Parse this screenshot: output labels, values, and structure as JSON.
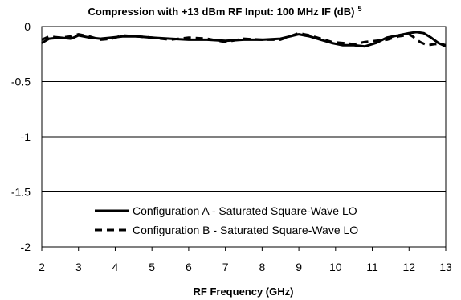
{
  "chart_data": {
    "type": "line",
    "title": "Compression with +13 dBm RF Input: 100 MHz IF (dB)",
    "title_superscript": "5",
    "xlabel": "RF Frequency (GHz)",
    "ylabel": "",
    "xlim": [
      2,
      13
    ],
    "ylim": [
      -2,
      0
    ],
    "x_ticks": [
      "2",
      "3",
      "4",
      "5",
      "6",
      "7",
      "8",
      "9",
      "10",
      "11",
      "12",
      "13"
    ],
    "y_ticks": [
      "0",
      "-0.5",
      "-1",
      "-1.5",
      "-2"
    ],
    "grid": "horizontal",
    "legend_position": "bottom-center",
    "series": [
      {
        "name": "Configuration A - Saturated Square-Wave LO",
        "style": "solid",
        "color": "#000000",
        "x": [
          2.0,
          2.2,
          2.5,
          2.8,
          3.0,
          3.3,
          3.6,
          3.9,
          4.2,
          4.6,
          5.0,
          5.5,
          6.0,
          6.5,
          7.0,
          7.5,
          8.0,
          8.5,
          9.0,
          9.3,
          9.6,
          9.9,
          10.2,
          10.5,
          10.8,
          11.1,
          11.4,
          11.7,
          12.0,
          12.2,
          12.4,
          12.6,
          12.8,
          13.0
        ],
        "y": [
          -0.15,
          -0.11,
          -0.1,
          -0.11,
          -0.08,
          -0.1,
          -0.11,
          -0.1,
          -0.09,
          -0.09,
          -0.1,
          -0.11,
          -0.12,
          -0.12,
          -0.13,
          -0.12,
          -0.12,
          -0.11,
          -0.07,
          -0.09,
          -0.12,
          -0.15,
          -0.17,
          -0.17,
          -0.18,
          -0.15,
          -0.1,
          -0.08,
          -0.06,
          -0.05,
          -0.06,
          -0.1,
          -0.15,
          -0.18
        ]
      },
      {
        "name": "Configuration B - Saturated Square-Wave LO",
        "style": "dashed",
        "color": "#000000",
        "x": [
          2.0,
          2.2,
          2.5,
          2.8,
          3.0,
          3.3,
          3.6,
          3.9,
          4.2,
          4.6,
          5.0,
          5.5,
          6.0,
          6.5,
          7.0,
          7.5,
          8.0,
          8.5,
          9.0,
          9.3,
          9.6,
          9.9,
          10.2,
          10.5,
          10.8,
          11.1,
          11.4,
          11.7,
          11.9,
          12.0,
          12.1,
          12.3,
          12.5,
          12.7,
          12.9,
          13.0
        ],
        "y": [
          -0.12,
          -0.09,
          -0.1,
          -0.09,
          -0.07,
          -0.09,
          -0.12,
          -0.11,
          -0.08,
          -0.09,
          -0.1,
          -0.12,
          -0.1,
          -0.11,
          -0.14,
          -0.11,
          -0.12,
          -0.12,
          -0.06,
          -0.08,
          -0.11,
          -0.14,
          -0.15,
          -0.16,
          -0.14,
          -0.13,
          -0.12,
          -0.09,
          -0.08,
          -0.07,
          -0.09,
          -0.14,
          -0.17,
          -0.16,
          -0.16,
          -0.17
        ]
      }
    ]
  }
}
